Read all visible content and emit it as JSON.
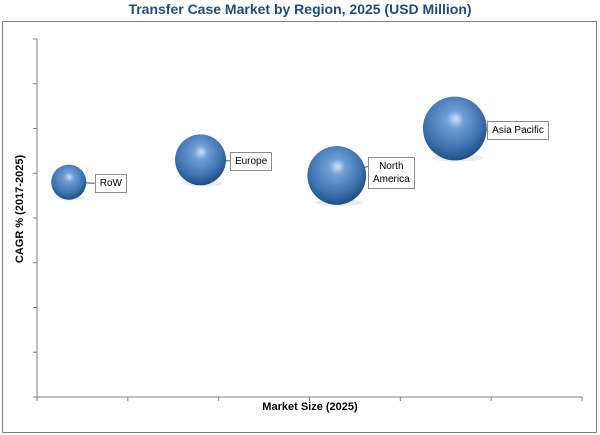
{
  "chart_data": {
    "type": "bubble",
    "title": "Transfer Case Market by Region, 2025 (USD Million)",
    "xlabel": "Market Size (2025)",
    "ylabel": "CAGR % (2017-2025)",
    "xlim": [
      0,
      6
    ],
    "ylim": [
      0,
      8
    ],
    "grid": false,
    "legend": "none",
    "bubble_color": "#3f74b1",
    "points": [
      {
        "label": "RoW",
        "x": 0.35,
        "y": 4.8,
        "size": 1.0
      },
      {
        "label": "Europe",
        "x": 1.8,
        "y": 5.3,
        "size": 2.1
      },
      {
        "label": "North\nAmerica",
        "x": 3.3,
        "y": 4.95,
        "size": 2.8
      },
      {
        "label": "Asia Pacific",
        "x": 4.6,
        "y": 6.0,
        "size": 3.3
      }
    ]
  }
}
